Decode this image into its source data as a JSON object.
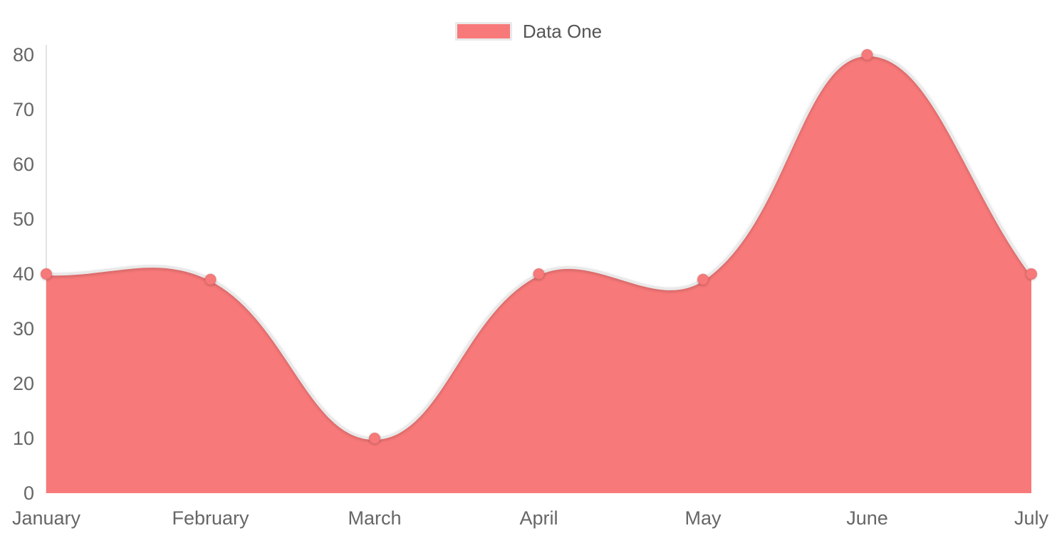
{
  "legend": {
    "position": "top",
    "items": [
      {
        "label": "Data One",
        "color": "#f87979"
      }
    ]
  },
  "chart_data": {
    "type": "area",
    "title": "",
    "xlabel": "",
    "ylabel": "",
    "categories": [
      "January",
      "February",
      "March",
      "April",
      "May",
      "June",
      "July"
    ],
    "series": [
      {
        "name": "Data One",
        "values": [
          40,
          39,
          10,
          40,
          39,
          80,
          40
        ]
      }
    ],
    "ylim": [
      0,
      80
    ],
    "yticks": [
      80,
      70,
      60,
      50,
      40,
      30,
      20,
      10,
      0
    ],
    "grid": "off",
    "legend_position": "top",
    "line_tension": 0.4
  },
  "colors": {
    "area_fill": "#f87979",
    "line": "#e9e9e9",
    "point_fill": "#f87979",
    "point_stroke": "#e06a6a",
    "axis_line": "#e3e3e3",
    "tick_text": "#666666",
    "legend_text": "#555555"
  }
}
